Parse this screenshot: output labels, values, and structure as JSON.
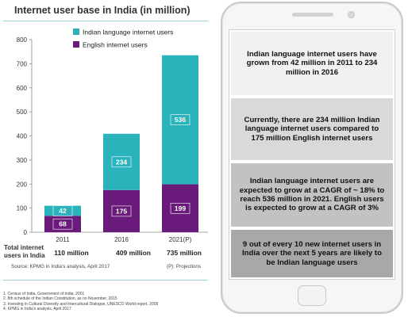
{
  "title": "Internet user base in India (in million)",
  "chart_data": {
    "type": "bar",
    "stacked": true,
    "categories": [
      "2011",
      "2016",
      "2021(P)"
    ],
    "series": [
      {
        "name": "English internet users",
        "values": [
          68,
          175,
          199
        ],
        "color": "#6a1a7a"
      },
      {
        "name": "Indian language internet users",
        "values": [
          42,
          234,
          536
        ],
        "color": "#2bb3bb"
      }
    ],
    "ylim": [
      0,
      800
    ],
    "yticks": [
      "0",
      "100",
      "200",
      "300",
      "400",
      "500",
      "600",
      "700",
      "800"
    ],
    "legend_position": "top-left",
    "grid": false
  },
  "totals": {
    "label_line1": "Total internet",
    "label_line2": "users in India",
    "values": [
      "110 million",
      "409 million",
      "735 million"
    ]
  },
  "source": "Source: KPMG in India's analysis, April 2017",
  "projection_note": "(P): Projections",
  "footnotes": [
    "1. Census of India, Government of India, 2001",
    "2. 8th schedule of the Indian Constitution, as on November, 2015",
    "3. Investing in Cultural Diversity and Intercultural Dialogue, UNESCO World report, 2009",
    "4. KPMG in India's analysis, April 2017"
  ],
  "phone": {
    "boxes": [
      "Indian language internet users have grown from 42 million in 2011 to 234 million in 2016",
      "Currently, there are 234 million Indian language internet users compared to 175 million English internet users",
      "Indian language internet users are expected to grow at a CAGR of ~ 18% to reach 536 million in 2021. English users is expected to grow at a CAGR of 3%",
      "9 out of every 10 new internet users in India over the next 5 years are likely to be Indian language users"
    ]
  }
}
